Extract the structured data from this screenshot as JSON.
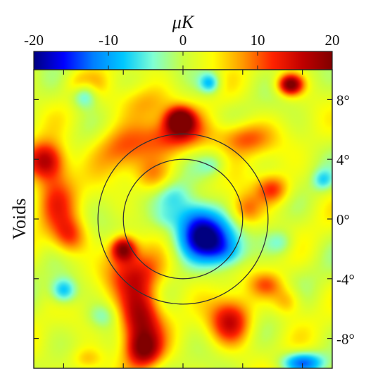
{
  "chart_data": {
    "type": "heatmap",
    "title": "",
    "colorbar": {
      "label": "μK",
      "range": [
        -20,
        20
      ],
      "ticks": [
        -20,
        -10,
        0,
        10,
        20
      ],
      "tick_labels": [
        "-20",
        "-10",
        "0",
        "10",
        "20"
      ],
      "colormap": [
        "#000080",
        "#0000ff",
        "#0080ff",
        "#00c8ff",
        "#7fffd4",
        "#c8ff40",
        "#ffff00",
        "#ff9900",
        "#ff2200",
        "#c00000",
        "#800000"
      ],
      "position": "top"
    },
    "ylabel": "Voids",
    "xlim": [
      -10,
      10
    ],
    "ylim": [
      -10,
      10
    ],
    "y_ticks": [
      8,
      4,
      0,
      -4,
      -8
    ],
    "y_tick_labels": [
      "8°",
      "4°",
      "0°",
      "-4°",
      "-8°"
    ],
    "x_ticks": [
      -8,
      -4,
      0,
      4,
      8
    ],
    "circles_deg": [
      4,
      5.7
    ],
    "features": [
      {
        "x": 1.5,
        "y": -1.3,
        "sx": 1.3,
        "sy": 1.0,
        "value": -20
      },
      {
        "x": 0.9,
        "y": 0.2,
        "sx": 1.1,
        "sy": 0.9,
        "value": -11
      },
      {
        "x": -0.6,
        "y": 1.6,
        "sx": 0.8,
        "sy": 0.7,
        "value": -5
      },
      {
        "x": 3.0,
        "y": -2.3,
        "sx": 0.9,
        "sy": 0.7,
        "value": -7
      },
      {
        "x": -0.2,
        "y": 6.6,
        "sx": 0.65,
        "sy": 0.6,
        "value": 20
      },
      {
        "x": -0.5,
        "y": 5.6,
        "sx": 1.6,
        "sy": 0.9,
        "value": 10
      },
      {
        "x": 4.0,
        "y": 5.4,
        "sx": 1.3,
        "sy": 0.8,
        "value": 10
      },
      {
        "x": -4.3,
        "y": 4.7,
        "sx": 1.4,
        "sy": 1.1,
        "value": 8
      },
      {
        "x": -2.6,
        "y": 7.8,
        "sx": 1.3,
        "sy": 0.9,
        "value": 7
      },
      {
        "x": -9.2,
        "y": 3.9,
        "sx": 0.9,
        "sy": 0.9,
        "value": 15
      },
      {
        "x": -8.5,
        "y": 1.6,
        "sx": 1.0,
        "sy": 1.6,
        "value": 9
      },
      {
        "x": -7.6,
        "y": -1.2,
        "sx": 0.8,
        "sy": 0.9,
        "value": 10
      },
      {
        "x": -4.0,
        "y": -2.0,
        "sx": 0.6,
        "sy": 0.6,
        "value": 18
      },
      {
        "x": -3.2,
        "y": -3.6,
        "sx": 1.5,
        "sy": 1.0,
        "value": 9
      },
      {
        "x": -2.9,
        "y": -6.6,
        "sx": 1.0,
        "sy": 1.6,
        "value": 18
      },
      {
        "x": -2.6,
        "y": -8.8,
        "sx": 0.8,
        "sy": 0.8,
        "value": 12
      },
      {
        "x": 3.2,
        "y": -6.9,
        "sx": 1.0,
        "sy": 1.1,
        "value": 14
      },
      {
        "x": 4.2,
        "y": 0.6,
        "sx": 0.8,
        "sy": 0.8,
        "value": 9
      },
      {
        "x": 6.0,
        "y": 2.0,
        "sx": 0.8,
        "sy": 0.7,
        "value": 11
      },
      {
        "x": 5.6,
        "y": -4.4,
        "sx": 0.8,
        "sy": 0.6,
        "value": 7
      },
      {
        "x": 7.0,
        "y": -5.5,
        "sx": 0.7,
        "sy": 0.7,
        "value": 7
      },
      {
        "x": 7.2,
        "y": 9.0,
        "sx": 0.6,
        "sy": 0.5,
        "value": 20
      },
      {
        "x": -6.6,
        "y": 9.0,
        "sx": 0.8,
        "sy": 0.6,
        "value": 7
      },
      {
        "x": -6.4,
        "y": -9.4,
        "sx": 0.8,
        "sy": 0.6,
        "value": 6
      },
      {
        "x": -2.0,
        "y": 2.8,
        "sx": 0.9,
        "sy": 0.8,
        "value": 6
      },
      {
        "x": -6.4,
        "y": 9.0,
        "sx": 0.5,
        "sy": 0.5,
        "value": -3
      },
      {
        "x": -6.6,
        "y": 8.3,
        "sx": 0.6,
        "sy": 0.6,
        "value": -10
      },
      {
        "x": 1.8,
        "y": 9.1,
        "sx": 0.5,
        "sy": 0.5,
        "value": -10
      },
      {
        "x": -8.0,
        "y": -4.8,
        "sx": 0.6,
        "sy": 0.6,
        "value": -11
      },
      {
        "x": 8.0,
        "y": -9.6,
        "sx": 1.0,
        "sy": 0.5,
        "value": -14
      },
      {
        "x": 9.4,
        "y": 2.6,
        "sx": 0.5,
        "sy": 0.5,
        "value": -7
      },
      {
        "x": -1.2,
        "y": 0.0,
        "sx": 0.6,
        "sy": 0.5,
        "value": -2
      },
      {
        "x": 2.0,
        "y": 3.6,
        "sx": 0.6,
        "sy": 0.5,
        "value": -4
      },
      {
        "x": 6.5,
        "y": -1.6,
        "sx": 0.7,
        "sy": 0.6,
        "value": -6
      },
      {
        "x": -5.4,
        "y": -6.5,
        "sx": 0.7,
        "sy": 0.6,
        "value": -5
      }
    ]
  }
}
